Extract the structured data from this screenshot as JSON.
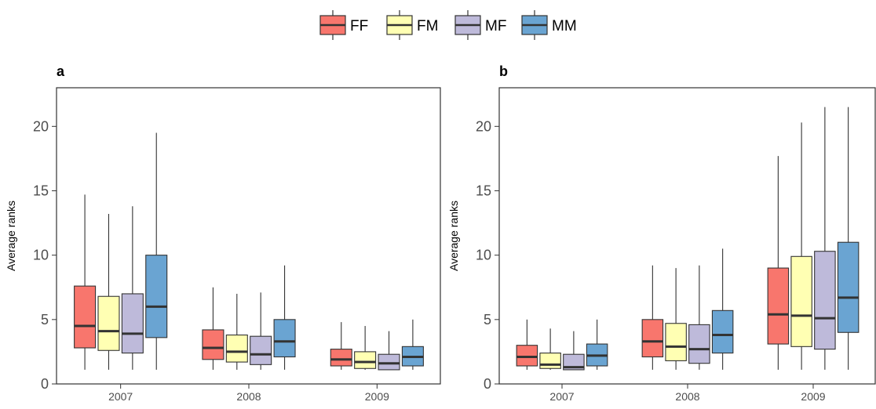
{
  "chart_data": {
    "type": "boxplot",
    "legend": {
      "placement": "top-center",
      "entries": [
        {
          "name": "FF",
          "color": "#F8766D"
        },
        {
          "name": "FM",
          "color": "#FFFFB3"
        },
        {
          "name": "MF",
          "color": "#BEBADA"
        },
        {
          "name": "MM",
          "color": "#6AA4D2"
        }
      ]
    },
    "ylim": [
      0,
      23
    ],
    "yticks": [
      0,
      5,
      10,
      15,
      20
    ],
    "categories": [
      "2007",
      "2008",
      "2009"
    ],
    "panels": [
      {
        "label": "a",
        "ylabel": "Average ranks",
        "boxes": [
          {
            "category": "2007",
            "group": "FF",
            "min": 1.1,
            "q1": 2.8,
            "median": 4.5,
            "q3": 7.6,
            "max": 14.7
          },
          {
            "category": "2007",
            "group": "FM",
            "min": 1.1,
            "q1": 2.6,
            "median": 4.1,
            "q3": 6.8,
            "max": 13.2
          },
          {
            "category": "2007",
            "group": "MF",
            "min": 1.1,
            "q1": 2.4,
            "median": 3.9,
            "q3": 7.0,
            "max": 13.8
          },
          {
            "category": "2007",
            "group": "MM",
            "min": 1.1,
            "q1": 3.6,
            "median": 6.0,
            "q3": 10.0,
            "max": 19.5
          },
          {
            "category": "2008",
            "group": "FF",
            "min": 1.1,
            "q1": 1.9,
            "median": 2.8,
            "q3": 4.2,
            "max": 7.5
          },
          {
            "category": "2008",
            "group": "FM",
            "min": 1.1,
            "q1": 1.7,
            "median": 2.5,
            "q3": 3.8,
            "max": 7.0
          },
          {
            "category": "2008",
            "group": "MF",
            "min": 1.1,
            "q1": 1.5,
            "median": 2.3,
            "q3": 3.7,
            "max": 7.1
          },
          {
            "category": "2008",
            "group": "MM",
            "min": 1.1,
            "q1": 2.1,
            "median": 3.3,
            "q3": 5.0,
            "max": 9.2
          },
          {
            "category": "2009",
            "group": "FF",
            "min": 1.1,
            "q1": 1.4,
            "median": 1.9,
            "q3": 2.7,
            "max": 4.8
          },
          {
            "category": "2009",
            "group": "FM",
            "min": 1.1,
            "q1": 1.2,
            "median": 1.7,
            "q3": 2.5,
            "max": 4.5
          },
          {
            "category": "2009",
            "group": "MF",
            "min": 1.1,
            "q1": 1.1,
            "median": 1.6,
            "q3": 2.3,
            "max": 4.1
          },
          {
            "category": "2009",
            "group": "MM",
            "min": 1.1,
            "q1": 1.4,
            "median": 2.1,
            "q3": 2.9,
            "max": 5.0
          }
        ]
      },
      {
        "label": "b",
        "ylabel": "Average ranks",
        "boxes": [
          {
            "category": "2007",
            "group": "FF",
            "min": 1.1,
            "q1": 1.4,
            "median": 2.1,
            "q3": 3.0,
            "max": 5.0
          },
          {
            "category": "2007",
            "group": "FM",
            "min": 1.1,
            "q1": 1.2,
            "median": 1.5,
            "q3": 2.4,
            "max": 4.3
          },
          {
            "category": "2007",
            "group": "MF",
            "min": 1.1,
            "q1": 1.1,
            "median": 1.3,
            "q3": 2.3,
            "max": 4.1
          },
          {
            "category": "2007",
            "group": "MM",
            "min": 1.1,
            "q1": 1.4,
            "median": 2.2,
            "q3": 3.1,
            "max": 5.0
          },
          {
            "category": "2008",
            "group": "FF",
            "min": 1.1,
            "q1": 2.1,
            "median": 3.3,
            "q3": 5.0,
            "max": 9.2
          },
          {
            "category": "2008",
            "group": "FM",
            "min": 1.1,
            "q1": 1.8,
            "median": 2.9,
            "q3": 4.7,
            "max": 9.0
          },
          {
            "category": "2008",
            "group": "MF",
            "min": 1.1,
            "q1": 1.6,
            "median": 2.7,
            "q3": 4.6,
            "max": 9.2
          },
          {
            "category": "2008",
            "group": "MM",
            "min": 1.1,
            "q1": 2.4,
            "median": 3.8,
            "q3": 5.7,
            "max": 10.5
          },
          {
            "category": "2009",
            "group": "FF",
            "min": 1.1,
            "q1": 3.1,
            "median": 5.4,
            "q3": 9.0,
            "max": 17.7
          },
          {
            "category": "2009",
            "group": "FM",
            "min": 1.1,
            "q1": 2.9,
            "median": 5.3,
            "q3": 9.9,
            "max": 20.3
          },
          {
            "category": "2009",
            "group": "MF",
            "min": 1.1,
            "q1": 2.7,
            "median": 5.1,
            "q3": 10.3,
            "max": 21.5
          },
          {
            "category": "2009",
            "group": "MM",
            "min": 1.1,
            "q1": 4.0,
            "median": 6.7,
            "q3": 11.0,
            "max": 21.5
          }
        ]
      }
    ]
  }
}
